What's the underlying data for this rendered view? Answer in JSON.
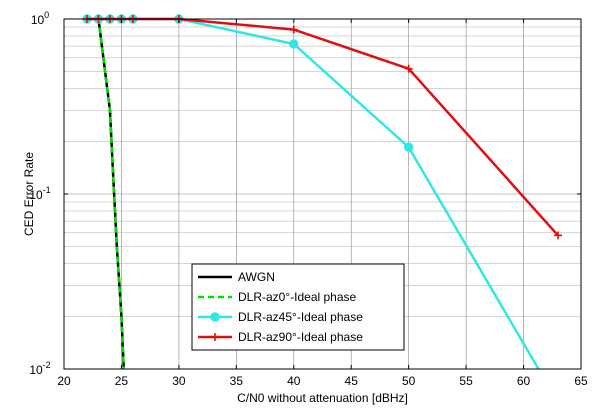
{
  "chart_data": {
    "type": "line",
    "title": "",
    "xlabel": "C/N0 without attenuation [dBHz]",
    "ylabel": "CED Error Rate",
    "x_scale": "linear",
    "y_scale": "log",
    "xlim": [
      20,
      65
    ],
    "ylim": [
      0.01,
      1
    ],
    "x_ticks": [
      20,
      25,
      30,
      35,
      40,
      45,
      50,
      55,
      60,
      65
    ],
    "x_tick_labels": [
      "20",
      "25",
      "30",
      "35",
      "40",
      "45",
      "50",
      "55",
      "60",
      "65"
    ],
    "y_ticks": [
      {
        "value": 1,
        "base": "10",
        "exp": "0"
      },
      {
        "value": 0.1,
        "base": "10",
        "exp": "-1"
      },
      {
        "value": 0.01,
        "base": "10",
        "exp": "-2"
      }
    ],
    "grid": true,
    "minor_grid": true,
    "legend_position": "bottom-center",
    "series": [
      {
        "name": "AWGN",
        "color": "#000000",
        "line_style": "solid",
        "marker": "none",
        "x": [
          22,
          23,
          23.5,
          24,
          24.3,
          24.6,
          25,
          25.2
        ],
        "y": [
          1,
          1,
          0.55,
          0.3,
          0.12,
          0.05,
          0.02,
          0.01
        ]
      },
      {
        "name": "DLR-az0°-Ideal phase",
        "color": "#00dd00",
        "line_style": "dashed",
        "marker": "none",
        "x": [
          22,
          23,
          23.5,
          24,
          24.3,
          24.6,
          25,
          25.2
        ],
        "y": [
          1,
          1,
          0.55,
          0.3,
          0.12,
          0.05,
          0.02,
          0.01
        ]
      },
      {
        "name": "DLR-az45°-Ideal phase",
        "color": "#33e6e6",
        "line_style": "solid",
        "marker": "circle",
        "x": [
          22,
          23,
          24,
          25,
          26,
          30,
          40,
          50,
          61.3
        ],
        "y": [
          1,
          1,
          1,
          1,
          1,
          1,
          0.72,
          0.185,
          0.01
        ]
      },
      {
        "name": "DLR-az90°-Ideal phase",
        "color": "#dd1111",
        "line_style": "solid",
        "marker": "plus",
        "x": [
          22,
          23,
          24,
          25,
          26,
          30,
          40,
          50,
          63
        ],
        "y": [
          1,
          1,
          1,
          1,
          1,
          1,
          0.87,
          0.52,
          0.058
        ]
      }
    ],
    "marker_points": {
      "DLR-az45°-Ideal phase": [
        22,
        23,
        24,
        25,
        26,
        30,
        40,
        50
      ],
      "DLR-az90°-Ideal phase": [
        22,
        23,
        24,
        25,
        26,
        30,
        40,
        50,
        63
      ]
    }
  }
}
